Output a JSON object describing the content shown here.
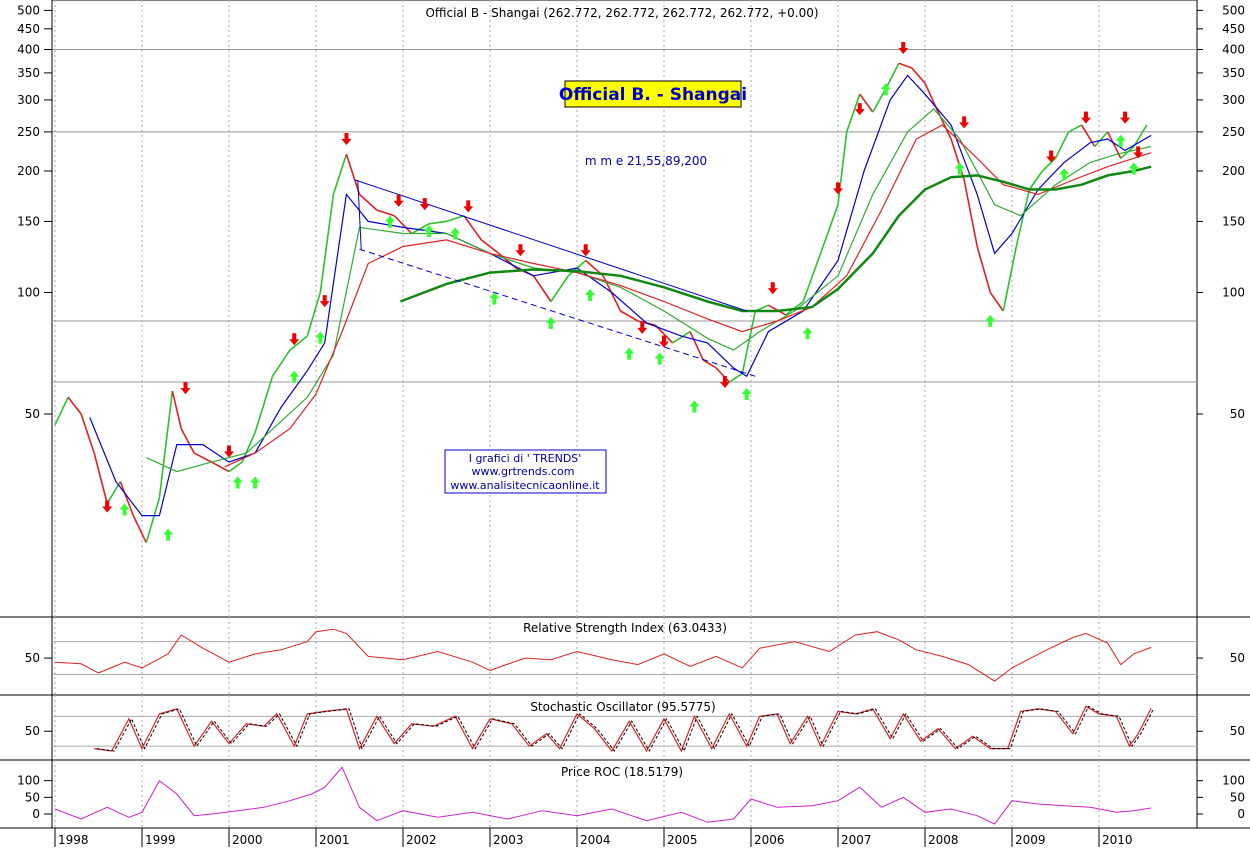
{
  "chart_data": [
    {
      "type": "line",
      "title": "Official B - Shangai (262.772, 262.772, 262.772, 262.772, +0.00)",
      "banner": "Official B. - Shangai",
      "ma_label": "m m e 21,55,89,200",
      "credits": [
        "I grafici di ' TRENDS'",
        "www.grtrends.com",
        "www.analisitecnicaonline.it"
      ],
      "y_scale": "log",
      "ylim": [
        20,
        500
      ],
      "y_ticks": [
        50,
        100,
        150,
        200,
        250,
        300,
        350,
        400,
        450,
        500
      ],
      "y_tick_labels": [
        "50",
        "100",
        "150",
        "200",
        "250",
        "300",
        "350",
        "400",
        "450",
        "500"
      ],
      "h_grid": [
        400,
        250,
        85,
        60
      ],
      "x_labels": [
        "1998",
        "1999",
        "2000",
        "2001",
        "2002",
        "2003",
        "2004",
        "2005",
        "2006",
        "2007",
        "2008",
        "2009",
        "2010"
      ],
      "colors": {
        "price_up": "#2bc22b",
        "price_down": "#e02020",
        "ema21": "#0000cc",
        "ema55": "#33aa33",
        "ema89": "#dd2222",
        "ema200": "#118811",
        "trend": "#0000cc",
        "sell": "#ee0000",
        "buy": "#33ff33"
      },
      "series": [
        {
          "key": "price",
          "x": [
            1998.0,
            1998.15,
            1998.3,
            1998.45,
            1998.6,
            1998.75,
            1998.9,
            1999.05,
            1999.2,
            1999.35,
            1999.45,
            1999.6,
            1999.8,
            2000.0,
            2000.15,
            2000.3,
            2000.5,
            2000.7,
            2000.9,
            2001.05,
            2001.2,
            2001.35,
            2001.5,
            2001.7,
            2001.9,
            2002.1,
            2002.3,
            2002.5,
            2002.7,
            2002.9,
            2003.1,
            2003.3,
            2003.5,
            2003.7,
            2003.9,
            2004.1,
            2004.3,
            2004.5,
            2004.7,
            2004.9,
            2005.1,
            2005.3,
            2005.45,
            2005.6,
            2005.75,
            2005.9,
            2006.05,
            2006.2,
            2006.4,
            2006.6,
            2006.8,
            2007.0,
            2007.1,
            2007.25,
            2007.4,
            2007.55,
            2007.7,
            2007.85,
            2008.0,
            2008.15,
            2008.3,
            2008.45,
            2008.6,
            2008.75,
            2008.9,
            2009.05,
            2009.2,
            2009.35,
            2009.5,
            2009.65,
            2009.8,
            2009.95,
            2010.1,
            2010.25,
            2010.4,
            2010.55
          ],
          "values": [
            47,
            55,
            50,
            40,
            30,
            34,
            28,
            24,
            31,
            57,
            46,
            40,
            38,
            36,
            38,
            45,
            62,
            72,
            78,
            100,
            175,
            220,
            175,
            160,
            155,
            140,
            148,
            150,
            155,
            135,
            125,
            115,
            110,
            95,
            110,
            120,
            110,
            90,
            85,
            83,
            75,
            80,
            68,
            65,
            60,
            63,
            90,
            93,
            88,
            95,
            125,
            165,
            250,
            310,
            280,
            320,
            370,
            360,
            330,
            280,
            240,
            190,
            130,
            100,
            90,
            130,
            180,
            200,
            215,
            250,
            260,
            230,
            250,
            215,
            230,
            260
          ]
        },
        {
          "key": "ema21",
          "x": [
            1998.4,
            1998.7,
            1999.0,
            1999.2,
            1999.4,
            1999.7,
            2000.0,
            2000.3,
            2000.6,
            2000.9,
            2001.1,
            2001.35,
            2001.6,
            2002.0,
            2002.5,
            2003.0,
            2003.5,
            2004.0,
            2004.4,
            2004.8,
            2005.2,
            2005.5,
            2005.8,
            2005.95,
            2006.2,
            2006.6,
            2007.0,
            2007.3,
            2007.6,
            2007.8,
            2008.0,
            2008.3,
            2008.6,
            2008.8,
            2009.0,
            2009.3,
            2009.6,
            2009.9,
            2010.1,
            2010.3,
            2010.6
          ],
          "values": [
            49,
            34,
            28,
            28,
            42,
            42,
            38,
            40,
            52,
            64,
            75,
            175,
            150,
            145,
            140,
            125,
            110,
            115,
            100,
            84,
            78,
            75,
            65,
            62,
            80,
            90,
            120,
            200,
            300,
            345,
            310,
            260,
            175,
            125,
            140,
            180,
            210,
            235,
            240,
            225,
            245
          ]
        },
        {
          "key": "ema55",
          "x": [
            1999.05,
            1999.4,
            1999.8,
            2000.2,
            2000.6,
            2000.9,
            2001.2,
            2001.5,
            2002.0,
            2002.5,
            2003.0,
            2003.5,
            2004.0,
            2004.5,
            2005.0,
            2005.5,
            2005.8,
            2006.1,
            2006.5,
            2007.0,
            2007.4,
            2007.8,
            2008.1,
            2008.4,
            2008.8,
            2009.1,
            2009.5,
            2009.9,
            2010.2,
            2010.6
          ],
          "values": [
            39,
            36,
            38,
            40,
            48,
            55,
            70,
            145,
            140,
            140,
            125,
            115,
            112,
            103,
            90,
            77,
            72,
            80,
            90,
            110,
            175,
            250,
            285,
            240,
            165,
            155,
            185,
            210,
            220,
            230
          ]
        },
        {
          "key": "ema89",
          "x": [
            1999.95,
            2000.3,
            2000.7,
            2001.0,
            2001.3,
            2001.6,
            2002.0,
            2002.5,
            2003.0,
            2003.5,
            2004.0,
            2004.5,
            2005.0,
            2005.5,
            2005.9,
            2006.3,
            2006.7,
            2007.1,
            2007.5,
            2007.9,
            2008.2,
            2008.6,
            2008.9,
            2009.3,
            2009.7,
            2010.1,
            2010.6
          ],
          "values": [
            37,
            40,
            46,
            56,
            80,
            118,
            130,
            135,
            125,
            118,
            112,
            104,
            95,
            86,
            80,
            85,
            92,
            110,
            160,
            240,
            260,
            215,
            185,
            175,
            190,
            205,
            222
          ]
        },
        {
          "key": "ema200",
          "x": [
            2001.97,
            2002.5,
            2003.0,
            2003.5,
            2004.0,
            2004.5,
            2005.0,
            2005.5,
            2005.9,
            2006.3,
            2006.7,
            2007.0,
            2007.4,
            2007.7,
            2008.0,
            2008.3,
            2008.6,
            2008.9,
            2009.2,
            2009.5,
            2009.8,
            2010.1,
            2010.4,
            2010.6
          ],
          "values": [
            95,
            105,
            112,
            114,
            113,
            110,
            103,
            95,
            90,
            90,
            92,
            102,
            125,
            155,
            180,
            193,
            195,
            188,
            180,
            180,
            185,
            195,
            200,
            205
          ]
        }
      ],
      "trendlines": [
        {
          "style": "solid",
          "x": [
            2001.45,
            2005.95
          ],
          "values": [
            190,
            90
          ]
        },
        {
          "style": "dashed",
          "x": [
            2001.5,
            2006.05
          ],
          "values": [
            128,
            62
          ]
        }
      ],
      "signals": {
        "sell": [
          [
            1998.6,
            28.5
          ],
          [
            1999.5,
            56
          ],
          [
            2000.0,
            39
          ],
          [
            2000.75,
            74
          ],
          [
            2001.1,
            92
          ],
          [
            2001.35,
            232
          ],
          [
            2001.95,
            163
          ],
          [
            2002.25,
            160
          ],
          [
            2002.75,
            158
          ],
          [
            2003.35,
            123
          ],
          [
            2004.1,
            123
          ],
          [
            2004.75,
            79
          ],
          [
            2005.0,
            73
          ],
          [
            2005.7,
            58
          ],
          [
            2006.25,
            99
          ],
          [
            2007.0,
            175
          ],
          [
            2007.25,
            275
          ],
          [
            2007.75,
            390
          ],
          [
            2008.45,
            255
          ],
          [
            2009.45,
            210
          ],
          [
            2009.85,
            262
          ],
          [
            2010.3,
            262
          ],
          [
            2010.45,
            215
          ]
        ],
        "buy": [
          [
            1998.8,
            30
          ],
          [
            1999.3,
            26
          ],
          [
            2000.1,
            35
          ],
          [
            2000.3,
            35
          ],
          [
            2000.75,
            64
          ],
          [
            2001.05,
            80
          ],
          [
            2001.85,
            155
          ],
          [
            2002.3,
            147
          ],
          [
            2002.6,
            145
          ],
          [
            2003.05,
            100
          ],
          [
            2003.7,
            87
          ],
          [
            2004.15,
            102
          ],
          [
            2004.6,
            73
          ],
          [
            2004.95,
            71
          ],
          [
            2005.35,
            54
          ],
          [
            2005.95,
            58
          ],
          [
            2006.65,
            82
          ],
          [
            2007.55,
            330
          ],
          [
            2008.4,
            210
          ],
          [
            2008.75,
            88
          ],
          [
            2009.6,
            203
          ],
          [
            2010.25,
            246
          ],
          [
            2010.4,
            210
          ]
        ]
      }
    },
    {
      "type": "line",
      "title": "Relative Strength Index (63.0433)",
      "ylim": [
        10,
        95
      ],
      "y_ticks": [
        50
      ],
      "y_tick_labels": [
        "50"
      ],
      "h_grid": [
        70,
        30
      ],
      "colors": {
        "line": "#dd2222"
      },
      "series": [
        {
          "key": "rsi",
          "x": [
            1998.0,
            1998.3,
            1998.5,
            1998.8,
            1999.0,
            1999.3,
            1999.45,
            1999.7,
            2000.0,
            2000.3,
            2000.6,
            2000.9,
            2001.0,
            2001.2,
            2001.35,
            2001.6,
            2002.0,
            2002.4,
            2002.8,
            2003.0,
            2003.4,
            2003.7,
            2004.0,
            2004.4,
            2004.7,
            2005.0,
            2005.3,
            2005.6,
            2005.9,
            2006.1,
            2006.5,
            2006.9,
            2007.2,
            2007.45,
            2007.7,
            2007.9,
            2008.2,
            2008.5,
            2008.8,
            2009.0,
            2009.4,
            2009.7,
            2009.85,
            2010.1,
            2010.25,
            2010.4,
            2010.6
          ],
          "values": [
            45,
            43,
            32,
            45,
            38,
            55,
            78,
            62,
            45,
            55,
            60,
            70,
            82,
            85,
            80,
            52,
            48,
            58,
            45,
            35,
            50,
            48,
            58,
            48,
            42,
            55,
            40,
            52,
            38,
            62,
            70,
            58,
            78,
            82,
            72,
            60,
            52,
            42,
            22,
            38,
            60,
            75,
            80,
            68,
            42,
            55,
            63
          ]
        }
      ]
    },
    {
      "type": "line",
      "title": "Stochastic Oscillator (95.5775)",
      "ylim": [
        0,
        115
      ],
      "y_ticks": [
        50
      ],
      "y_tick_labels": [
        "50"
      ],
      "h_grid": [
        80,
        20
      ],
      "colors": {
        "k_line": "#dd2222",
        "d_line": "#000000"
      },
      "series": [
        {
          "key": "stoch",
          "x": [
            1998.45,
            1998.65,
            1998.85,
            1999.0,
            1999.2,
            1999.4,
            1999.6,
            1999.8,
            2000.0,
            2000.2,
            2000.4,
            2000.55,
            2000.75,
            2000.9,
            2001.1,
            2001.35,
            2001.5,
            2001.7,
            2001.9,
            2002.1,
            2002.35,
            2002.6,
            2002.8,
            2003.0,
            2003.25,
            2003.45,
            2003.65,
            2003.8,
            2004.0,
            2004.2,
            2004.4,
            2004.6,
            2004.8,
            2005.0,
            2005.2,
            2005.35,
            2005.55,
            2005.75,
            2005.95,
            2006.1,
            2006.3,
            2006.45,
            2006.65,
            2006.8,
            2007.0,
            2007.2,
            2007.4,
            2007.6,
            2007.75,
            2007.95,
            2008.15,
            2008.35,
            2008.55,
            2008.75,
            2008.95,
            2009.1,
            2009.3,
            2009.5,
            2009.7,
            2009.85,
            2010.0,
            2010.2,
            2010.35,
            2010.45,
            2010.6
          ],
          "values": [
            15,
            10,
            75,
            15,
            85,
            95,
            20,
            70,
            25,
            65,
            60,
            85,
            20,
            85,
            90,
            95,
            15,
            80,
            25,
            65,
            60,
            80,
            15,
            75,
            65,
            20,
            45,
            15,
            85,
            55,
            10,
            70,
            10,
            75,
            10,
            80,
            15,
            85,
            20,
            80,
            85,
            25,
            80,
            20,
            90,
            85,
            95,
            35,
            85,
            30,
            55,
            15,
            40,
            15,
            15,
            90,
            95,
            90,
            45,
            100,
            85,
            80,
            20,
            45,
            96
          ]
        }
      ]
    },
    {
      "type": "line",
      "title": "Price ROC (18.5179)",
      "ylim": [
        -30,
        150
      ],
      "y_ticks": [
        0,
        50,
        100
      ],
      "y_tick_labels": [
        "0",
        "50",
        "100"
      ],
      "colors": {
        "line": "#cc22cc"
      },
      "series": [
        {
          "key": "roc",
          "x": [
            1998.0,
            1998.3,
            1998.6,
            1998.85,
            1999.0,
            1999.2,
            1999.4,
            1999.6,
            1999.8,
            2000.1,
            2000.4,
            2000.7,
            2000.95,
            2001.1,
            2001.3,
            2001.5,
            2001.7,
            2002.0,
            2002.4,
            2002.8,
            2003.2,
            2003.6,
            2004.0,
            2004.4,
            2004.8,
            2005.2,
            2005.5,
            2005.8,
            2006.0,
            2006.3,
            2006.7,
            2007.0,
            2007.25,
            2007.5,
            2007.75,
            2008.0,
            2008.3,
            2008.6,
            2008.8,
            2009.0,
            2009.3,
            2009.6,
            2009.9,
            2010.2,
            2010.4,
            2010.6
          ],
          "values": [
            15,
            -15,
            20,
            -10,
            5,
            100,
            60,
            -5,
            0,
            10,
            20,
            40,
            60,
            80,
            140,
            20,
            -20,
            10,
            -10,
            5,
            -15,
            10,
            -5,
            15,
            -20,
            5,
            -25,
            -15,
            45,
            20,
            25,
            40,
            80,
            20,
            50,
            5,
            15,
            -5,
            -30,
            40,
            30,
            25,
            20,
            5,
            10,
            18
          ]
        }
      ]
    }
  ]
}
